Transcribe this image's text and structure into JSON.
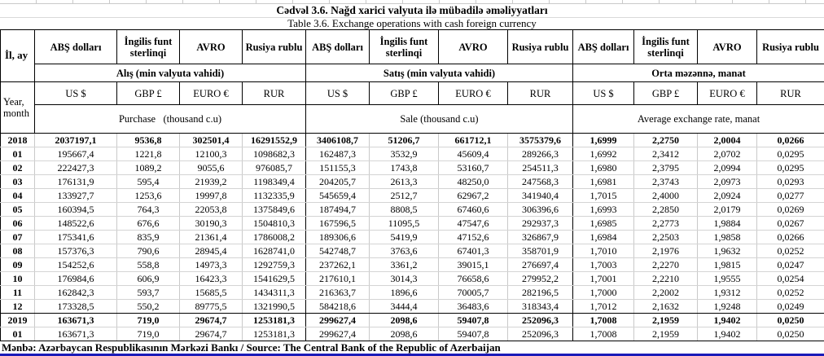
{
  "titles": {
    "az": "Cədvəl 3.6. Nağd xarici valyuta ilə mübadilə əməliyyatları",
    "en": "Table  3.6. Exchange operations with cash foreign currency"
  },
  "header": {
    "year_month_az": "İl, ay",
    "year_month_en": "Year,\nmonth",
    "currencies_az": [
      "ABŞ dolları",
      "İngilis funt sterlinqi",
      "AVRO",
      "Rusiya rublu"
    ],
    "codes": [
      "US $",
      "GBP £",
      "EURO €",
      "RUR"
    ],
    "groups": [
      {
        "caption_az": "Alış (min valyuta vahidi)",
        "caption_en": "Purchase   (thousand c.u)"
      },
      {
        "caption_az": "Satış (min valyuta vahidi)",
        "caption_en": "Sale (thousand c.u)"
      },
      {
        "caption_az": "Orta məzənnə, manat",
        "caption_en": "Average exchange rate, manat"
      }
    ]
  },
  "rows": [
    {
      "period": "2018",
      "style": "year",
      "purchase": [
        "2037197,1",
        "9536,8",
        "302501,4",
        "16291552,9"
      ],
      "sale": [
        "3406108,7",
        "51206,7",
        "661712,1",
        "3575379,6"
      ],
      "rate": [
        "1,6999",
        "2,2750",
        "2,0004",
        "0,0266"
      ]
    },
    {
      "period": "01",
      "style": "month",
      "purchase": [
        "195667,4",
        "1221,8",
        "12100,3",
        "1098682,3"
      ],
      "sale": [
        "162487,3",
        "3532,9",
        "45609,4",
        "289266,3"
      ],
      "rate": [
        "1,6992",
        "2,3412",
        "2,0702",
        "0,0295"
      ]
    },
    {
      "period": "02",
      "style": "month",
      "purchase": [
        "222427,3",
        "1089,2",
        "9055,6",
        "976085,7"
      ],
      "sale": [
        "151155,3",
        "1743,8",
        "53160,7",
        "254511,3"
      ],
      "rate": [
        "1,6980",
        "2,3795",
        "2,0994",
        "0,0295"
      ]
    },
    {
      "period": "03",
      "style": "month",
      "purchase": [
        "176131,9",
        "595,4",
        "21939,2",
        "1198349,4"
      ],
      "sale": [
        "204205,7",
        "2613,3",
        "48250,0",
        "247568,3"
      ],
      "rate": [
        "1,6981",
        "2,3743",
        "2,0973",
        "0,0293"
      ]
    },
    {
      "period": "04",
      "style": "month",
      "purchase": [
        "133927,7",
        "1253,6",
        "19997,8",
        "1132335,9"
      ],
      "sale": [
        "545659,4",
        "2512,7",
        "62967,2",
        "341940,4"
      ],
      "rate": [
        "1,7015",
        "2,4000",
        "2,0924",
        "0,0277"
      ]
    },
    {
      "period": "05",
      "style": "month",
      "purchase": [
        "160394,5",
        "764,3",
        "22053,8",
        "1375849,6"
      ],
      "sale": [
        "187494,7",
        "8808,5",
        "67460,6",
        "306396,6"
      ],
      "rate": [
        "1,6993",
        "2,2850",
        "2,0179",
        "0,0269"
      ]
    },
    {
      "period": "06",
      "style": "month",
      "purchase": [
        "148522,6",
        "676,6",
        "30190,3",
        "1504810,3"
      ],
      "sale": [
        "167596,5",
        "11095,5",
        "47547,6",
        "292937,3"
      ],
      "rate": [
        "1,6985",
        "2,2773",
        "1,9884",
        "0,0267"
      ]
    },
    {
      "period": "07",
      "style": "month",
      "purchase": [
        "175341,6",
        "835,9",
        "21361,4",
        "1786008,2"
      ],
      "sale": [
        "189306,6",
        "5419,9",
        "47152,6",
        "326867,9"
      ],
      "rate": [
        "1,6984",
        "2,2503",
        "1,9858",
        "0,0266"
      ]
    },
    {
      "period": "08",
      "style": "month",
      "purchase": [
        "157376,3",
        "790,6",
        "28945,4",
        "1628741,0"
      ],
      "sale": [
        "542748,7",
        "3763,6",
        "67401,3",
        "358701,9"
      ],
      "rate": [
        "1,7010",
        "2,1976",
        "1,9632",
        "0,0252"
      ]
    },
    {
      "period": "09",
      "style": "month",
      "purchase": [
        "154252,6",
        "558,8",
        "14973,3",
        "1292759,3"
      ],
      "sale": [
        "237262,1",
        "3361,2",
        "39015,1",
        "276697,4"
      ],
      "rate": [
        "1,7003",
        "2,2270",
        "1,9815",
        "0,0247"
      ]
    },
    {
      "period": "10",
      "style": "month",
      "purchase": [
        "176984,6",
        "606,9",
        "16423,3",
        "1541629,5"
      ],
      "sale": [
        "217610,1",
        "3014,3",
        "76658,6",
        "279952,2"
      ],
      "rate": [
        "1,7001",
        "2,2210",
        "1,9555",
        "0,0254"
      ]
    },
    {
      "period": "11",
      "style": "month",
      "purchase": [
        "162842,3",
        "593,7",
        "15685,5",
        "1434311,3"
      ],
      "sale": [
        "216363,7",
        "1896,6",
        "70005,7",
        "282196,5"
      ],
      "rate": [
        "1,7000",
        "2,2002",
        "1,9312",
        "0,0252"
      ]
    },
    {
      "period": "12",
      "style": "month",
      "purchase": [
        "173328,5",
        "550,2",
        "89775,5",
        "1321990,5"
      ],
      "sale": [
        "584218,6",
        "3444,4",
        "36483,6",
        "318343,4"
      ],
      "rate": [
        "1,7012",
        "2,1632",
        "1,9248",
        "0,0249"
      ]
    },
    {
      "period": "2019",
      "style": "year",
      "purchase": [
        "163671,3",
        "719,0",
        "29674,7",
        "1253181,3"
      ],
      "sale": [
        "299627,4",
        "2098,6",
        "59407,8",
        "252096,3"
      ],
      "rate": [
        "1,7008",
        "2,1959",
        "1,9402",
        "0,0250"
      ]
    },
    {
      "period": "01",
      "style": "month",
      "purchase": [
        "163671,3",
        "719,0",
        "29674,7",
        "1253181,3"
      ],
      "sale": [
        "299627,4",
        "2098,6",
        "59407,8",
        "252096,3"
      ],
      "rate": [
        "1,7008",
        "2,1959",
        "1,9402",
        "0,0250"
      ]
    }
  ],
  "footer": {
    "source": "Mənbə: Azərbaycan Respublikasının Mərkəzi Bankı / Source: The Central Bank of the Republic of Azerbaijan"
  },
  "colors": {
    "bottom_bar_blue": "#1b1bb8",
    "grid_line": "#c9c9c9",
    "border_black": "#000000"
  }
}
